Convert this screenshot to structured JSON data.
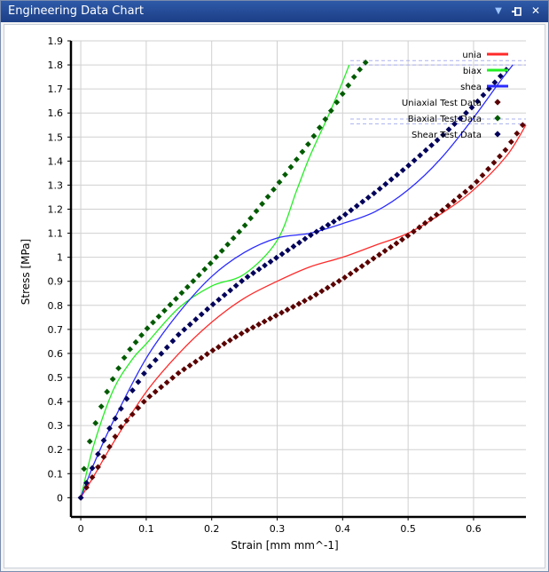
{
  "window": {
    "title": "Engineering Data Chart",
    "menu_icon": "dropdown-arrow-icon",
    "pin_icon": "pin-icon",
    "close_icon": "close-icon"
  },
  "colors": {
    "titlebar": "#1f4694",
    "uniaxial": "#ff2a2a",
    "biaxial": "#22ee22",
    "shear": "#2a2aff",
    "uniaxial_test": "#5a0000",
    "biaxial_test": "#005a00",
    "shear_test": "#00005a"
  },
  "chart_data": {
    "type": "line",
    "title": "",
    "xlabel": "Strain  [mm mm^-1]",
    "ylabel": "Stress  [MPa]",
    "xlim": [
      -0.015,
      0.68
    ],
    "ylim": [
      -0.08,
      1.9
    ],
    "x_ticks": [
      "0",
      "0.1",
      "0.2",
      "0.3",
      "0.4",
      "0.5",
      "0.6"
    ],
    "y_ticks": [
      "0",
      "0.1",
      "0.2",
      "0.3",
      "0.4",
      "0.5",
      "0.6",
      "0.7",
      "0.8",
      "0.9",
      "1",
      "1.1",
      "1.2",
      "1.3",
      "1.4",
      "1.5",
      "1.6",
      "1.7",
      "1.8",
      "1.9"
    ],
    "grid": true,
    "legend_position": "top-right",
    "series": [
      {
        "name": "unia",
        "kind": "line",
        "color": "#ff2a2a",
        "x": [
          0,
          0.02,
          0.05,
          0.1,
          0.15,
          0.2,
          0.25,
          0.3,
          0.35,
          0.4,
          0.45,
          0.5,
          0.55,
          0.6,
          0.65,
          0.68
        ],
        "y": [
          0,
          0.09,
          0.23,
          0.44,
          0.6,
          0.73,
          0.83,
          0.9,
          0.96,
          1.0,
          1.05,
          1.1,
          1.18,
          1.28,
          1.42,
          1.55
        ]
      },
      {
        "name": "biax",
        "kind": "line",
        "color": "#22ee22",
        "x": [
          0,
          0.02,
          0.05,
          0.08,
          0.1,
          0.15,
          0.2,
          0.25,
          0.3,
          0.33,
          0.35,
          0.38,
          0.4,
          0.41
        ],
        "y": [
          0,
          0.22,
          0.45,
          0.58,
          0.64,
          0.79,
          0.88,
          0.93,
          1.07,
          1.28,
          1.42,
          1.6,
          1.73,
          1.8
        ]
      },
      {
        "name": "shea",
        "kind": "line",
        "color": "#2a2aff",
        "x": [
          0,
          0.02,
          0.05,
          0.1,
          0.15,
          0.2,
          0.25,
          0.3,
          0.35,
          0.4,
          0.45,
          0.5,
          0.55,
          0.6,
          0.64,
          0.66
        ],
        "y": [
          0,
          0.14,
          0.32,
          0.58,
          0.77,
          0.92,
          1.02,
          1.08,
          1.1,
          1.14,
          1.19,
          1.28,
          1.41,
          1.58,
          1.73,
          1.8
        ]
      },
      {
        "name": "Uniaxial Test Data",
        "kind": "scatter",
        "color": "#5a0000",
        "x": [
          0,
          0.06,
          0.1,
          0.15,
          0.2,
          0.25,
          0.3,
          0.35,
          0.4,
          0.45,
          0.5,
          0.55,
          0.6,
          0.65,
          0.675
        ],
        "y": [
          0,
          0.29,
          0.41,
          0.52,
          0.61,
          0.69,
          0.76,
          0.83,
          0.91,
          1.0,
          1.09,
          1.19,
          1.3,
          1.45,
          1.55
        ]
      },
      {
        "name": "Biaxial Test Data",
        "kind": "scatter",
        "color": "#005a00",
        "x": [
          0.005,
          0.01,
          0.02,
          0.03,
          0.04,
          0.05,
          0.07,
          0.1,
          0.15,
          0.2,
          0.25,
          0.3,
          0.35,
          0.38,
          0.4,
          0.42,
          0.435
        ],
        "y": [
          0.12,
          0.2,
          0.29,
          0.37,
          0.44,
          0.5,
          0.6,
          0.7,
          0.84,
          0.98,
          1.13,
          1.3,
          1.48,
          1.6,
          1.68,
          1.76,
          1.81
        ]
      },
      {
        "name": "Shear Test Data",
        "kind": "scatter",
        "color": "#00005a",
        "x": [
          0,
          0.02,
          0.04,
          0.07,
          0.1,
          0.15,
          0.2,
          0.25,
          0.3,
          0.35,
          0.4,
          0.45,
          0.5,
          0.55,
          0.6,
          0.65
        ],
        "y": [
          0,
          0.14,
          0.27,
          0.41,
          0.53,
          0.68,
          0.8,
          0.91,
          1.0,
          1.09,
          1.17,
          1.27,
          1.38,
          1.5,
          1.63,
          1.78
        ]
      }
    ]
  }
}
